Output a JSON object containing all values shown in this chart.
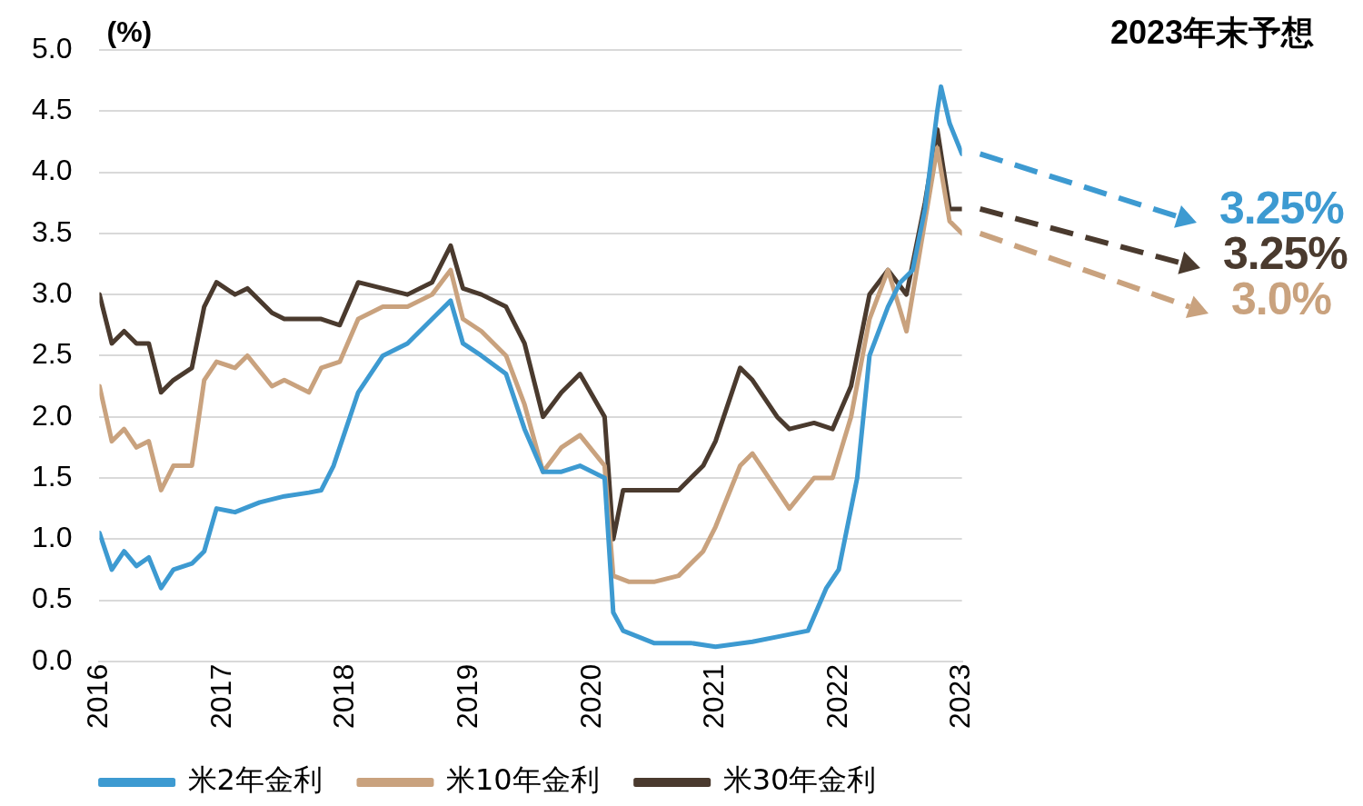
{
  "chart_data": {
    "type": "line",
    "ylabel": "(%)",
    "xlim": [
      2016,
      2023
    ],
    "xticks": [
      2016,
      2017,
      2018,
      2019,
      2020,
      2021,
      2022,
      2023
    ],
    "ylim": [
      0,
      5
    ],
    "yticks": [
      {
        "value": 0,
        "label": "0.0"
      },
      {
        "value": 0.5,
        "label": "0.5"
      },
      {
        "value": 1,
        "label": "1.0"
      },
      {
        "value": 1.5,
        "label": "1.5"
      },
      {
        "value": 2,
        "label": "2.0"
      },
      {
        "value": 2.5,
        "label": "2.5"
      },
      {
        "value": 3,
        "label": "3.0"
      },
      {
        "value": 3.5,
        "label": "3.5"
      },
      {
        "value": 4,
        "label": "4.0"
      },
      {
        "value": 4.5,
        "label": "4.5"
      },
      {
        "value": 5,
        "label": "5.0"
      }
    ],
    "grid": "y",
    "legend": "bottom",
    "marker": "none",
    "line_style": "solid",
    "annotations": [
      "2023年末予想",
      "3.25%",
      "3.25%",
      "3.0%"
    ],
    "series": [
      {
        "name": "米2年金利",
        "color": "#3d9ad1",
        "x": [
          2016.0,
          2016.1,
          2016.2,
          2016.3,
          2016.4,
          2016.5,
          2016.6,
          2016.75,
          2016.85,
          2016.95,
          2017.1,
          2017.3,
          2017.5,
          2017.7,
          2017.8,
          2017.9,
          2018.0,
          2018.1,
          2018.3,
          2018.5,
          2018.7,
          2018.85,
          2018.95,
          2019.1,
          2019.3,
          2019.45,
          2019.6,
          2019.75,
          2019.9,
          2020.1,
          2020.17,
          2020.25,
          2020.5,
          2020.8,
          2021.0,
          2021.3,
          2021.5,
          2021.75,
          2021.9,
          2022.0,
          2022.15,
          2022.25,
          2022.4,
          2022.5,
          2022.6,
          2022.7,
          2022.8,
          2022.83,
          2022.9,
          2023.0
        ],
        "values": [
          1.05,
          0.75,
          0.9,
          0.78,
          0.85,
          0.6,
          0.75,
          0.8,
          0.9,
          1.25,
          1.22,
          1.3,
          1.35,
          1.38,
          1.4,
          1.6,
          1.9,
          2.2,
          2.5,
          2.6,
          2.8,
          2.95,
          2.6,
          2.5,
          2.35,
          1.9,
          1.55,
          1.55,
          1.6,
          1.5,
          0.4,
          0.25,
          0.15,
          0.15,
          0.12,
          0.16,
          0.2,
          0.25,
          0.6,
          0.75,
          1.5,
          2.5,
          2.9,
          3.1,
          3.2,
          3.7,
          4.5,
          4.7,
          4.4,
          4.15
        ]
      },
      {
        "name": "米10年金利",
        "color": "#c9a27e",
        "x": [
          2016.0,
          2016.1,
          2016.2,
          2016.3,
          2016.4,
          2016.5,
          2016.6,
          2016.75,
          2016.85,
          2016.95,
          2017.1,
          2017.2,
          2017.4,
          2017.5,
          2017.7,
          2017.8,
          2017.95,
          2018.1,
          2018.3,
          2018.5,
          2018.7,
          2018.85,
          2018.95,
          2019.1,
          2019.3,
          2019.45,
          2019.6,
          2019.75,
          2019.9,
          2020.1,
          2020.17,
          2020.3,
          2020.5,
          2020.7,
          2020.9,
          2021.0,
          2021.2,
          2021.3,
          2021.5,
          2021.6,
          2021.8,
          2021.95,
          2022.1,
          2022.25,
          2022.4,
          2022.55,
          2022.7,
          2022.8,
          2022.9,
          2023.0
        ],
        "values": [
          2.25,
          1.8,
          1.9,
          1.75,
          1.8,
          1.4,
          1.6,
          1.6,
          2.3,
          2.45,
          2.4,
          2.5,
          2.25,
          2.3,
          2.2,
          2.4,
          2.45,
          2.8,
          2.9,
          2.9,
          3.0,
          3.2,
          2.8,
          2.7,
          2.5,
          2.1,
          1.55,
          1.75,
          1.85,
          1.6,
          0.7,
          0.65,
          0.65,
          0.7,
          0.9,
          1.1,
          1.6,
          1.7,
          1.4,
          1.25,
          1.5,
          1.5,
          2.0,
          2.8,
          3.2,
          2.7,
          3.6,
          4.2,
          3.6,
          3.5
        ]
      },
      {
        "name": "米30年金利",
        "color": "#4a3a2e",
        "x": [
          2016.0,
          2016.1,
          2016.2,
          2016.3,
          2016.4,
          2016.5,
          2016.6,
          2016.75,
          2016.85,
          2016.95,
          2017.1,
          2017.2,
          2017.4,
          2017.5,
          2017.7,
          2017.8,
          2017.95,
          2018.1,
          2018.3,
          2018.5,
          2018.7,
          2018.85,
          2018.95,
          2019.1,
          2019.3,
          2019.45,
          2019.6,
          2019.75,
          2019.9,
          2020.1,
          2020.17,
          2020.25,
          2020.5,
          2020.7,
          2020.9,
          2021.0,
          2021.2,
          2021.3,
          2021.5,
          2021.6,
          2021.8,
          2021.95,
          2022.1,
          2022.25,
          2022.4,
          2022.55,
          2022.7,
          2022.8,
          2022.9,
          2023.0
        ],
        "values": [
          3.0,
          2.6,
          2.7,
          2.6,
          2.6,
          2.2,
          2.3,
          2.4,
          2.9,
          3.1,
          3.0,
          3.05,
          2.85,
          2.8,
          2.8,
          2.8,
          2.75,
          3.1,
          3.05,
          3.0,
          3.1,
          3.4,
          3.05,
          3.0,
          2.9,
          2.6,
          2.0,
          2.2,
          2.35,
          2.0,
          1.0,
          1.4,
          1.4,
          1.4,
          1.6,
          1.8,
          2.4,
          2.3,
          2.0,
          1.9,
          1.95,
          1.9,
          2.25,
          3.0,
          3.2,
          3.0,
          3.75,
          4.35,
          3.7,
          3.7
        ]
      }
    ]
  }
}
